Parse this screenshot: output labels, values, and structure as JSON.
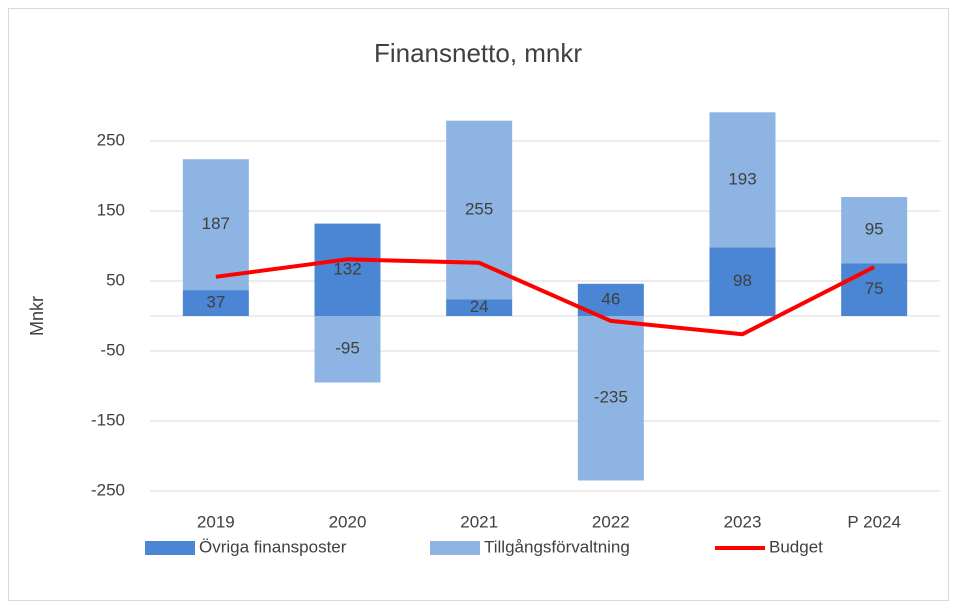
{
  "chart_data": {
    "type": "bar",
    "stacked": true,
    "title": "Finansnetto, mnkr",
    "y_label": "Mnkr",
    "categories": [
      "2019",
      "2020",
      "2021",
      "2022",
      "2023",
      "P 2024"
    ],
    "series": [
      {
        "name": "Övriga finansposter",
        "type": "bar",
        "color": "#4a86d4",
        "values": [
          37,
          132,
          24,
          46,
          98,
          75
        ]
      },
      {
        "name": "Tillgångsförvaltning",
        "type": "bar",
        "color": "#8eb4e3",
        "values": [
          187,
          -95,
          255,
          -235,
          193,
          95
        ]
      },
      {
        "name": "Budget",
        "type": "line",
        "color": "#ff0000",
        "values": [
          56,
          81,
          76,
          -7,
          -26,
          70
        ]
      }
    ],
    "ylim": [
      -250,
      300
    ],
    "yticks": [
      -250,
      -150,
      -50,
      50,
      150,
      250
    ],
    "grid": true,
    "legend": "bottom"
  }
}
